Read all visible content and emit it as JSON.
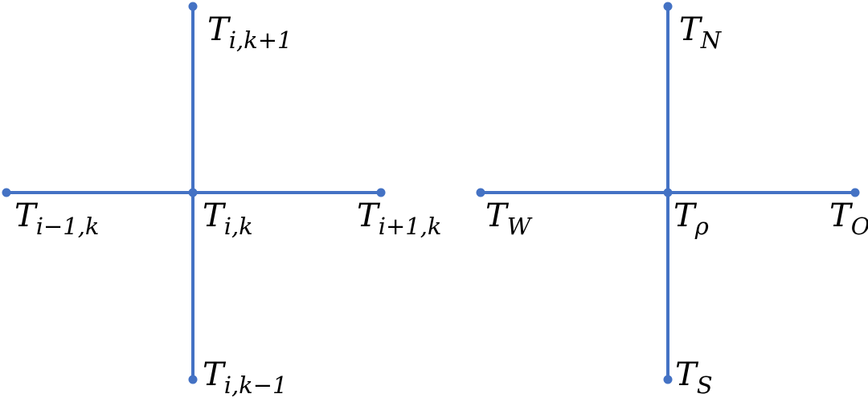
{
  "colors": {
    "line": "#4472C4",
    "text": "#000000",
    "background": "#ffffff"
  },
  "left_stencil": {
    "north": {
      "base": "T",
      "sub": "i,k+1"
    },
    "west": {
      "base": "T",
      "sub": "i−1,k"
    },
    "center": {
      "base": "T",
      "sub": "i,k"
    },
    "east": {
      "base": "T",
      "sub": "i+1,k"
    },
    "south": {
      "base": "T",
      "sub": "i,k−1"
    }
  },
  "right_stencil": {
    "north": {
      "base": "T",
      "sub": "N"
    },
    "west": {
      "base": "T",
      "sub": "W"
    },
    "center": {
      "base": "T",
      "sub": "ρ"
    },
    "east": {
      "base": "T",
      "sub": "O"
    },
    "south": {
      "base": "T",
      "sub": "S"
    }
  }
}
